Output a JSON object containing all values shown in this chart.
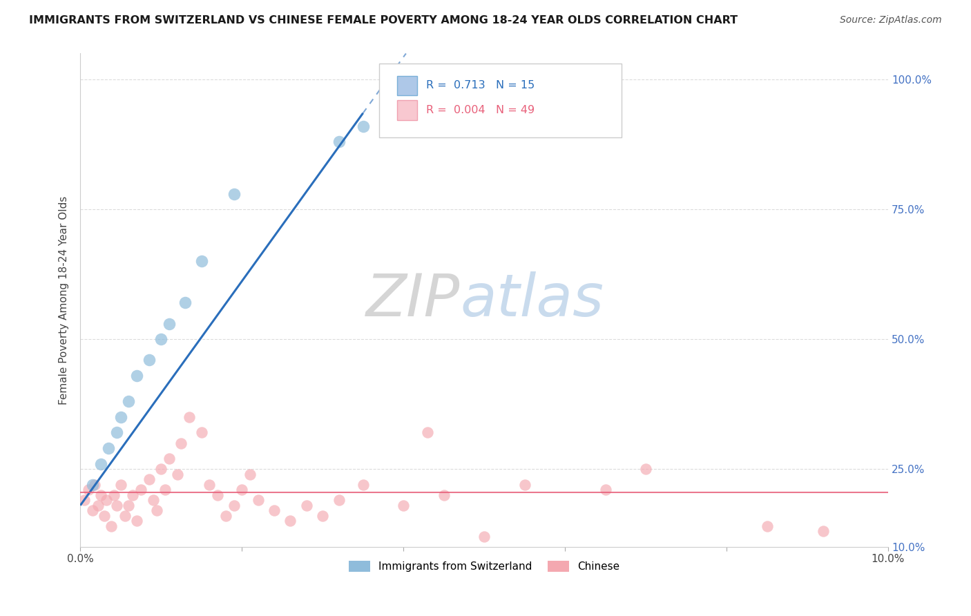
{
  "title": "IMMIGRANTS FROM SWITZERLAND VS CHINESE FEMALE POVERTY AMONG 18-24 YEAR OLDS CORRELATION CHART",
  "source": "Source: ZipAtlas.com",
  "ylabel": "Female Poverty Among 18-24 Year Olds",
  "xlim": [
    0.0,
    10.0
  ],
  "ylim": [
    10.0,
    105.0
  ],
  "blue_color": "#8fbcdb",
  "pink_color": "#f4a8b0",
  "blue_line_color": "#2a6ebb",
  "pink_line_color": "#e8607a",
  "legend_R_blue": "0.713",
  "legend_N_blue": "15",
  "legend_R_pink": "0.004",
  "legend_N_pink": "49",
  "legend_label_blue": "Immigrants from Switzerland",
  "legend_label_pink": "Chinese",
  "watermark_ZIP": "ZIP",
  "watermark_atlas": "atlas",
  "blue_scatter_x": [
    0.15,
    0.25,
    0.35,
    0.45,
    0.5,
    0.6,
    0.7,
    0.85,
    1.0,
    1.1,
    1.3,
    1.5,
    1.9,
    3.2,
    3.5
  ],
  "blue_scatter_y": [
    22.0,
    26.0,
    29.0,
    32.0,
    35.0,
    38.0,
    43.0,
    46.0,
    50.0,
    53.0,
    57.0,
    65.0,
    78.0,
    88.0,
    91.0
  ],
  "pink_scatter_x": [
    0.05,
    0.1,
    0.15,
    0.18,
    0.22,
    0.25,
    0.3,
    0.32,
    0.38,
    0.42,
    0.45,
    0.5,
    0.55,
    0.6,
    0.65,
    0.7,
    0.75,
    0.85,
    0.9,
    0.95,
    1.0,
    1.05,
    1.1,
    1.2,
    1.25,
    1.35,
    1.5,
    1.6,
    1.7,
    1.8,
    1.9,
    2.0,
    2.1,
    2.2,
    2.4,
    2.6,
    2.8,
    3.0,
    3.2,
    3.5,
    4.0,
    4.3,
    4.5,
    5.0,
    5.5,
    6.5,
    7.0,
    8.5,
    9.2
  ],
  "pink_scatter_y": [
    19.0,
    21.0,
    17.0,
    22.0,
    18.0,
    20.0,
    16.0,
    19.0,
    14.0,
    20.0,
    18.0,
    22.0,
    16.0,
    18.0,
    20.0,
    15.0,
    21.0,
    23.0,
    19.0,
    17.0,
    25.0,
    21.0,
    27.0,
    24.0,
    30.0,
    35.0,
    32.0,
    22.0,
    20.0,
    16.0,
    18.0,
    21.0,
    24.0,
    19.0,
    17.0,
    15.0,
    18.0,
    16.0,
    19.0,
    22.0,
    18.0,
    32.0,
    20.0,
    12.0,
    22.0,
    21.0,
    25.0,
    14.0,
    13.0
  ],
  "background_color": "#ffffff",
  "grid_color": "#d8d8d8",
  "blue_trend_x0": 0.0,
  "blue_trend_y0": 18.0,
  "blue_trend_x1": 3.8,
  "blue_trend_y1": 100.0,
  "pink_trend_y": 20.5
}
